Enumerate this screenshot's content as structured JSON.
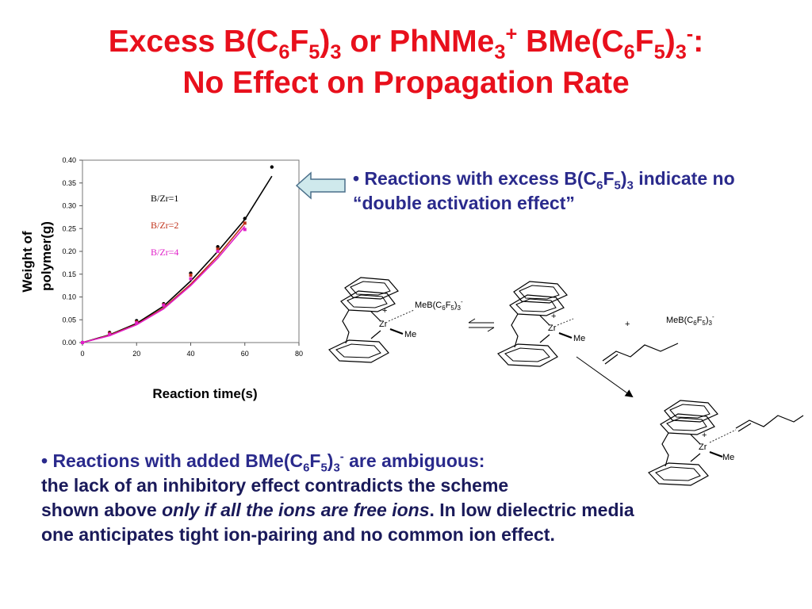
{
  "slide": {
    "title_line1": {
      "prefix": "Excess B(C",
      "s1": "6",
      "mid1": "F",
      "s2": "5",
      "mid2": ")",
      "s3": "3",
      "mid3": " or PhNMe",
      "s4": "3",
      "sup1": "+",
      "mid4": " BMe(C",
      "s5": "6",
      "mid5": "F",
      "s6": "5",
      "mid6": ")",
      "s7": "3",
      "sup2": "-",
      "suffix": ":"
    },
    "title_line2": "No Effect on Propagation Rate",
    "bullet1": {
      "a": "• Reactions with excess B(C",
      "s1": "6",
      "b": "F",
      "s2": "5",
      "c": ")",
      "s3": "3",
      "d": " indicate no “double activation effect”"
    },
    "bullet2": {
      "a": "• Reactions with added BMe(C",
      "s1": "6",
      "b": "F",
      "s2": "5",
      "c": ")",
      "s3": "3",
      "sup": "-",
      "d": " are ambiguous:",
      "line2": "the lack of an inhibitory effect contradicts the scheme",
      "line3a": "shown above ",
      "line3em": "only if all the ions are free ions",
      "line3b": ".  In low dielectric media",
      "line4": "one anticipates tight ion-pairing and no common ion effect."
    }
  },
  "scheme": {
    "zr": "Zr",
    "plus": "+",
    "me": "Me",
    "anion": "MeB(C6F5)3",
    "anion_minus": "-",
    "plus_sign": "+",
    "colors": {
      "line": "#000000",
      "dash": "#333333"
    }
  },
  "chart_data": {
    "type": "scatter",
    "xlabel": "Reaction time(s)",
    "ylabel_line1": "Weight of",
    "ylabel_line2": "polymer(g)",
    "xlim": [
      0,
      80
    ],
    "ylim": [
      0,
      0.4
    ],
    "xticks": [
      "0",
      "20",
      "40",
      "60",
      "80"
    ],
    "yticks": [
      "0.00",
      "0.05",
      "0.10",
      "0.15",
      "0.20",
      "0.25",
      "0.30",
      "0.35",
      "0.40"
    ],
    "legend_placement": "top-center",
    "series": [
      {
        "name": "B/Zr=1",
        "color": "#000000",
        "x": [
          0,
          10,
          20,
          30,
          40,
          50,
          60,
          70
        ],
        "y": [
          0.0,
          0.022,
          0.048,
          0.085,
          0.152,
          0.21,
          0.272,
          0.385
        ],
        "fit": [
          [
            0,
            0
          ],
          [
            10,
            0.017
          ],
          [
            20,
            0.042
          ],
          [
            30,
            0.08
          ],
          [
            40,
            0.135
          ],
          [
            50,
            0.2
          ],
          [
            60,
            0.27
          ],
          [
            70,
            0.365
          ]
        ]
      },
      {
        "name": "B/Zr=2",
        "color": "#c03018",
        "x": [
          0,
          10,
          20,
          30,
          40,
          50,
          60
        ],
        "y": [
          0.0,
          0.02,
          0.045,
          0.083,
          0.148,
          0.205,
          0.262
        ],
        "fit": [
          [
            0,
            0
          ],
          [
            10,
            0.016
          ],
          [
            20,
            0.04
          ],
          [
            30,
            0.076
          ],
          [
            40,
            0.128
          ],
          [
            50,
            0.19
          ],
          [
            60,
            0.262
          ]
        ]
      },
      {
        "name": "B/Zr=4",
        "color": "#e020c8",
        "x": [
          0,
          10,
          20,
          30,
          40,
          50,
          60
        ],
        "y": [
          0.0,
          0.018,
          0.043,
          0.082,
          0.14,
          0.2,
          0.248
        ],
        "fit": [
          [
            0,
            0
          ],
          [
            10,
            0.015
          ],
          [
            20,
            0.039
          ],
          [
            30,
            0.074
          ],
          [
            40,
            0.125
          ],
          [
            50,
            0.185
          ],
          [
            60,
            0.255
          ]
        ]
      }
    ]
  }
}
